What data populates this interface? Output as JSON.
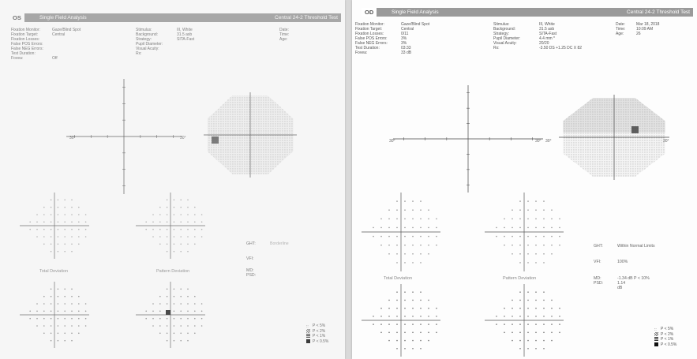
{
  "os": {
    "eye": "OS",
    "title": "Single Field Analysis",
    "test": "Central 24-2 Threshold Test",
    "params_left": [
      [
        "Fixation Monitor:",
        "Gaze/Blind Spot"
      ],
      [
        "Fixation Target:",
        "Central"
      ],
      [
        "Fixation Losses:",
        ""
      ],
      [
        "False POS Errors:",
        ""
      ],
      [
        "False NEG Errors:",
        ""
      ],
      [
        "Test Duration:",
        ""
      ],
      [
        "Fovea:",
        "Off"
      ]
    ],
    "params_mid": [
      [
        "Stimulus:",
        "III, White"
      ],
      [
        "Background:",
        "31.5 asb"
      ],
      [
        "Strategy:",
        "SITA-Fast"
      ],
      [
        "Pupil Diameter:",
        ""
      ],
      [
        "Visual Acuity:",
        ""
      ],
      [
        "Rx:",
        ""
      ]
    ],
    "params_right": [
      [
        "Date:",
        ""
      ],
      [
        "Time:",
        ""
      ],
      [
        "Age:",
        ""
      ]
    ],
    "axis_left": "30°",
    "axis_right": "30°",
    "total_deviation": "Total Deviation",
    "pattern_deviation": "Pattern Deviation",
    "ght_label": "GHT:",
    "ght_value": "Borderline",
    "vfi_label": "VFI:",
    "vfi_value": "",
    "md_label": "MD:",
    "md_value": "",
    "psd_label": "PSD:",
    "psd_value": "",
    "legend": [
      "P < 5%",
      "P < 2%",
      "P < 1%",
      "P < 0.5%"
    ]
  },
  "od": {
    "eye": "OD",
    "title": "Single Field Analysis",
    "test": "Central 24-2 Threshold Test",
    "params_left": [
      [
        "Fixation Monitor:",
        "Gaze/Blind Spot"
      ],
      [
        "Fixation Target:",
        "Central"
      ],
      [
        "Fixation Losses:",
        "0/11"
      ],
      [
        "False POS Errors:",
        "3%"
      ],
      [
        "False NEG Errors:",
        "3%"
      ],
      [
        "Test Duration:",
        "03:33"
      ],
      [
        "Fovea:",
        "33 dB"
      ]
    ],
    "params_mid": [
      [
        "Stimulus:",
        "III, White"
      ],
      [
        "Background:",
        "31.5 asb"
      ],
      [
        "Strategy:",
        "SITA-Fast"
      ],
      [
        "Pupil Diameter:",
        "4.4 mm *"
      ],
      [
        "Visual Acuity:",
        "20/20"
      ],
      [
        "Rx:",
        "-3.50 DS +1.25 DC X 82"
      ]
    ],
    "params_right": [
      [
        "Date:",
        "Mar 18, 2018"
      ],
      [
        "Time:",
        "10:09 AM"
      ],
      [
        "Age:",
        "26"
      ]
    ],
    "axis_left": "30°",
    "axis_right": "30°",
    "total_deviation": "Total Deviation",
    "pattern_deviation": "Pattern Deviation",
    "ght_label": "GHT:",
    "ght_value": "Within Normal Limits",
    "vfi_label": "VFI:",
    "vfi_value": "100%",
    "md_label": "MD:",
    "md_value": "-1.34 dB P < 10%",
    "psd_label": "PSD:",
    "psd_value": "1.14 dB",
    "legend": [
      "P < 5%",
      "P < 2%",
      "P < 1%",
      "P < 0.5%"
    ]
  },
  "colors": {
    "header": "#9a9a9a",
    "text": "#666666",
    "dot": "#555555",
    "grid": "#444444"
  }
}
